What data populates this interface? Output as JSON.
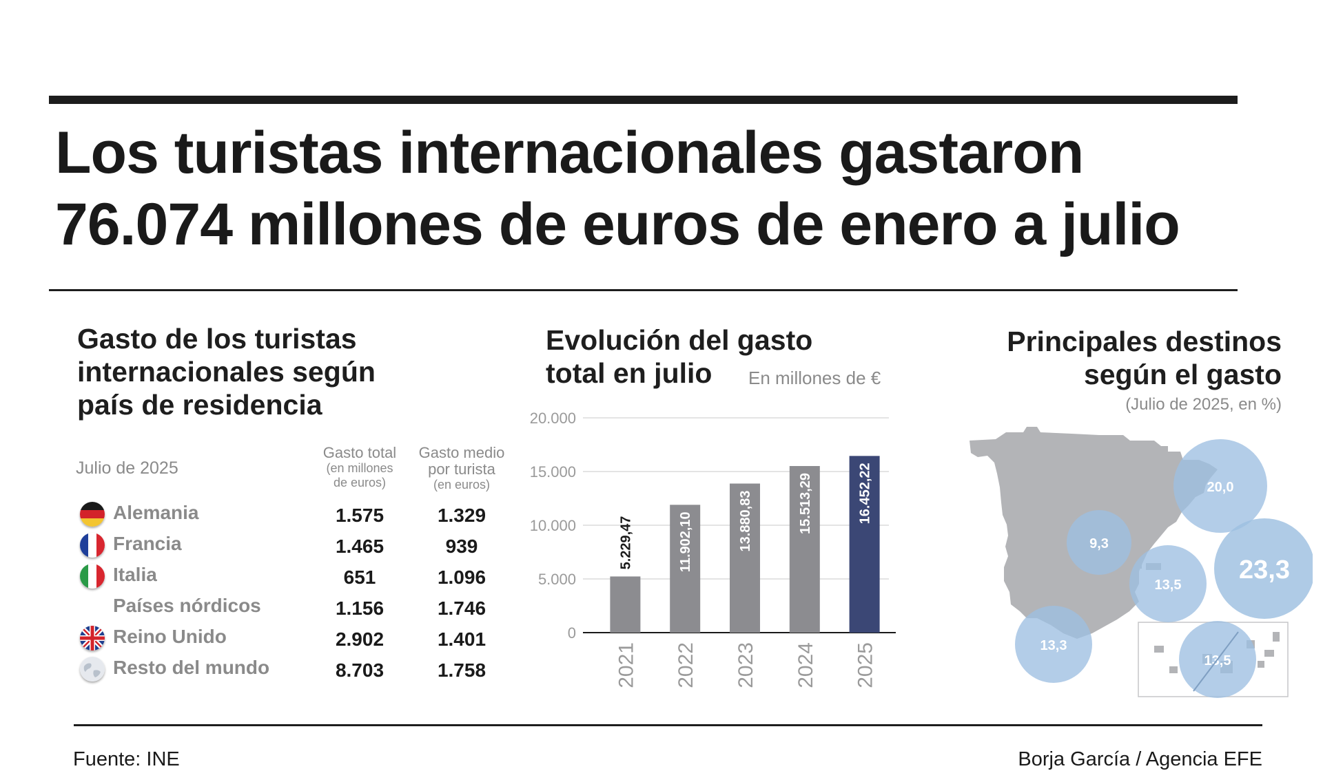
{
  "headline": {
    "line1": "Los turistas internacionales gastaron",
    "line2": "76.074 millones de euros de enero a julio"
  },
  "table": {
    "title": [
      "Gasto de los turistas",
      "internacionales según",
      "país de residencia"
    ],
    "date": "Julio de 2025",
    "col_total": {
      "main": "Gasto total",
      "sub1": "(en millones",
      "sub2": "de euros)"
    },
    "col_avg": {
      "main1": "Gasto medio",
      "main2": "por turista",
      "sub": "(en euros)"
    },
    "rows": [
      {
        "country": "Alemania",
        "total": "1.575",
        "avg": "1.329",
        "flag": "germany-flag-icon"
      },
      {
        "country": "Francia",
        "total": "1.465",
        "avg": "939",
        "flag": "france-flag-icon"
      },
      {
        "country": "Italia",
        "total": "651",
        "avg": "1.096",
        "flag": "italy-flag-icon"
      },
      {
        "country": "Países nórdicos",
        "total": "1.156",
        "avg": "1.746",
        "flag": ""
      },
      {
        "country": "Reino Unido",
        "total": "2.902",
        "avg": "1.401",
        "flag": "uk-flag-icon"
      },
      {
        "country": "Resto del mundo",
        "total": "8.703",
        "avg": "1.758",
        "flag": "globe-icon"
      }
    ]
  },
  "bar_section": {
    "title": [
      "Evolución del gasto",
      "total en julio"
    ],
    "unit": "En millones de €"
  },
  "map_section": {
    "title": [
      "Principales destinos",
      "según el gasto"
    ],
    "subtitle": "(Julio de 2025, en %)",
    "bubbles": [
      "20,0",
      "9,3",
      "23,3",
      "13,5",
      "13,3",
      "13,5"
    ]
  },
  "chart_data": {
    "type": "bar",
    "title": "Evolución del gasto total en julio",
    "ylabel": "En millones de €",
    "categories": [
      "2021",
      "2022",
      "2023",
      "2024",
      "2025"
    ],
    "values": [
      5229.47,
      11902.1,
      13880.83,
      15513.29,
      16452.22
    ],
    "value_labels": [
      "5.229,47",
      "11.902,10",
      "13.880,83",
      "15.513,29",
      "16.452,22"
    ],
    "yticks": [
      0,
      5000,
      10000,
      15000,
      20000
    ],
    "ytick_labels": [
      "0",
      "5.000",
      "10.000",
      "15.000",
      "20.000"
    ],
    "ylim": [
      0,
      20000
    ],
    "grid": true,
    "colors": {
      "default": "#8c8c90",
      "highlight": "#3b4775"
    },
    "highlight_category": "2025"
  },
  "colors": {
    "text": "#1a1a1a",
    "muted": "#8a8a8a",
    "map_land": "#b3b4b7",
    "bubble": "#9dbfe1"
  },
  "footer": {
    "source": "Fuente: INE",
    "credit": "Borja García / Agencia EFE"
  }
}
